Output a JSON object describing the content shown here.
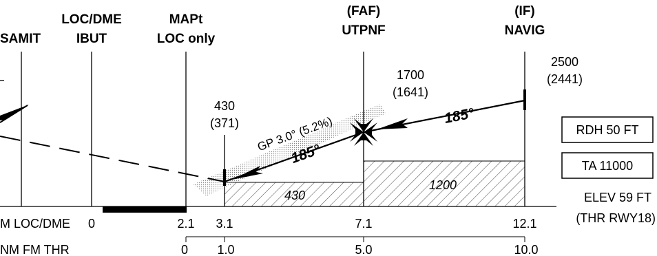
{
  "fixes": {
    "samit": {
      "lines": [
        "SAMIT"
      ]
    },
    "ibut": {
      "lines": [
        "LOC/DME",
        "IBUT"
      ]
    },
    "mapt": {
      "lines": [
        "MAPt",
        "LOC only"
      ]
    },
    "faf": {
      "lines": [
        "(FAF)",
        "UTPNF"
      ]
    },
    "iff": {
      "lines": [
        "(IF)",
        "NAVIG"
      ]
    }
  },
  "altitudes": {
    "if": {
      "alt": "2500",
      "height": "(2441)"
    },
    "faf": {
      "alt": "1700",
      "height": "(1641)"
    },
    "step": {
      "alt": "430",
      "height": "(371)"
    }
  },
  "glidepath": {
    "label": "GP 3.0° (5.2%)",
    "course": "185°"
  },
  "intermediate": {
    "course": "185°"
  },
  "minimum_altitudes": {
    "near": "430",
    "far": "1200"
  },
  "boxes": {
    "rdh": "RDH 50 FT",
    "ta": "TA 11000"
  },
  "elevation": {
    "label": "ELEV 59 FT",
    "ref": "(THR RWY18)"
  },
  "dme_scale": {
    "label": "M LOC/DME",
    "ticks": [
      "0",
      "2.1",
      "3.1",
      "7.1",
      "12.1"
    ]
  },
  "thr_scale": {
    "label": "NM FM THR",
    "ticks": [
      "0",
      "1.0",
      "5.0",
      "10.0"
    ]
  }
}
